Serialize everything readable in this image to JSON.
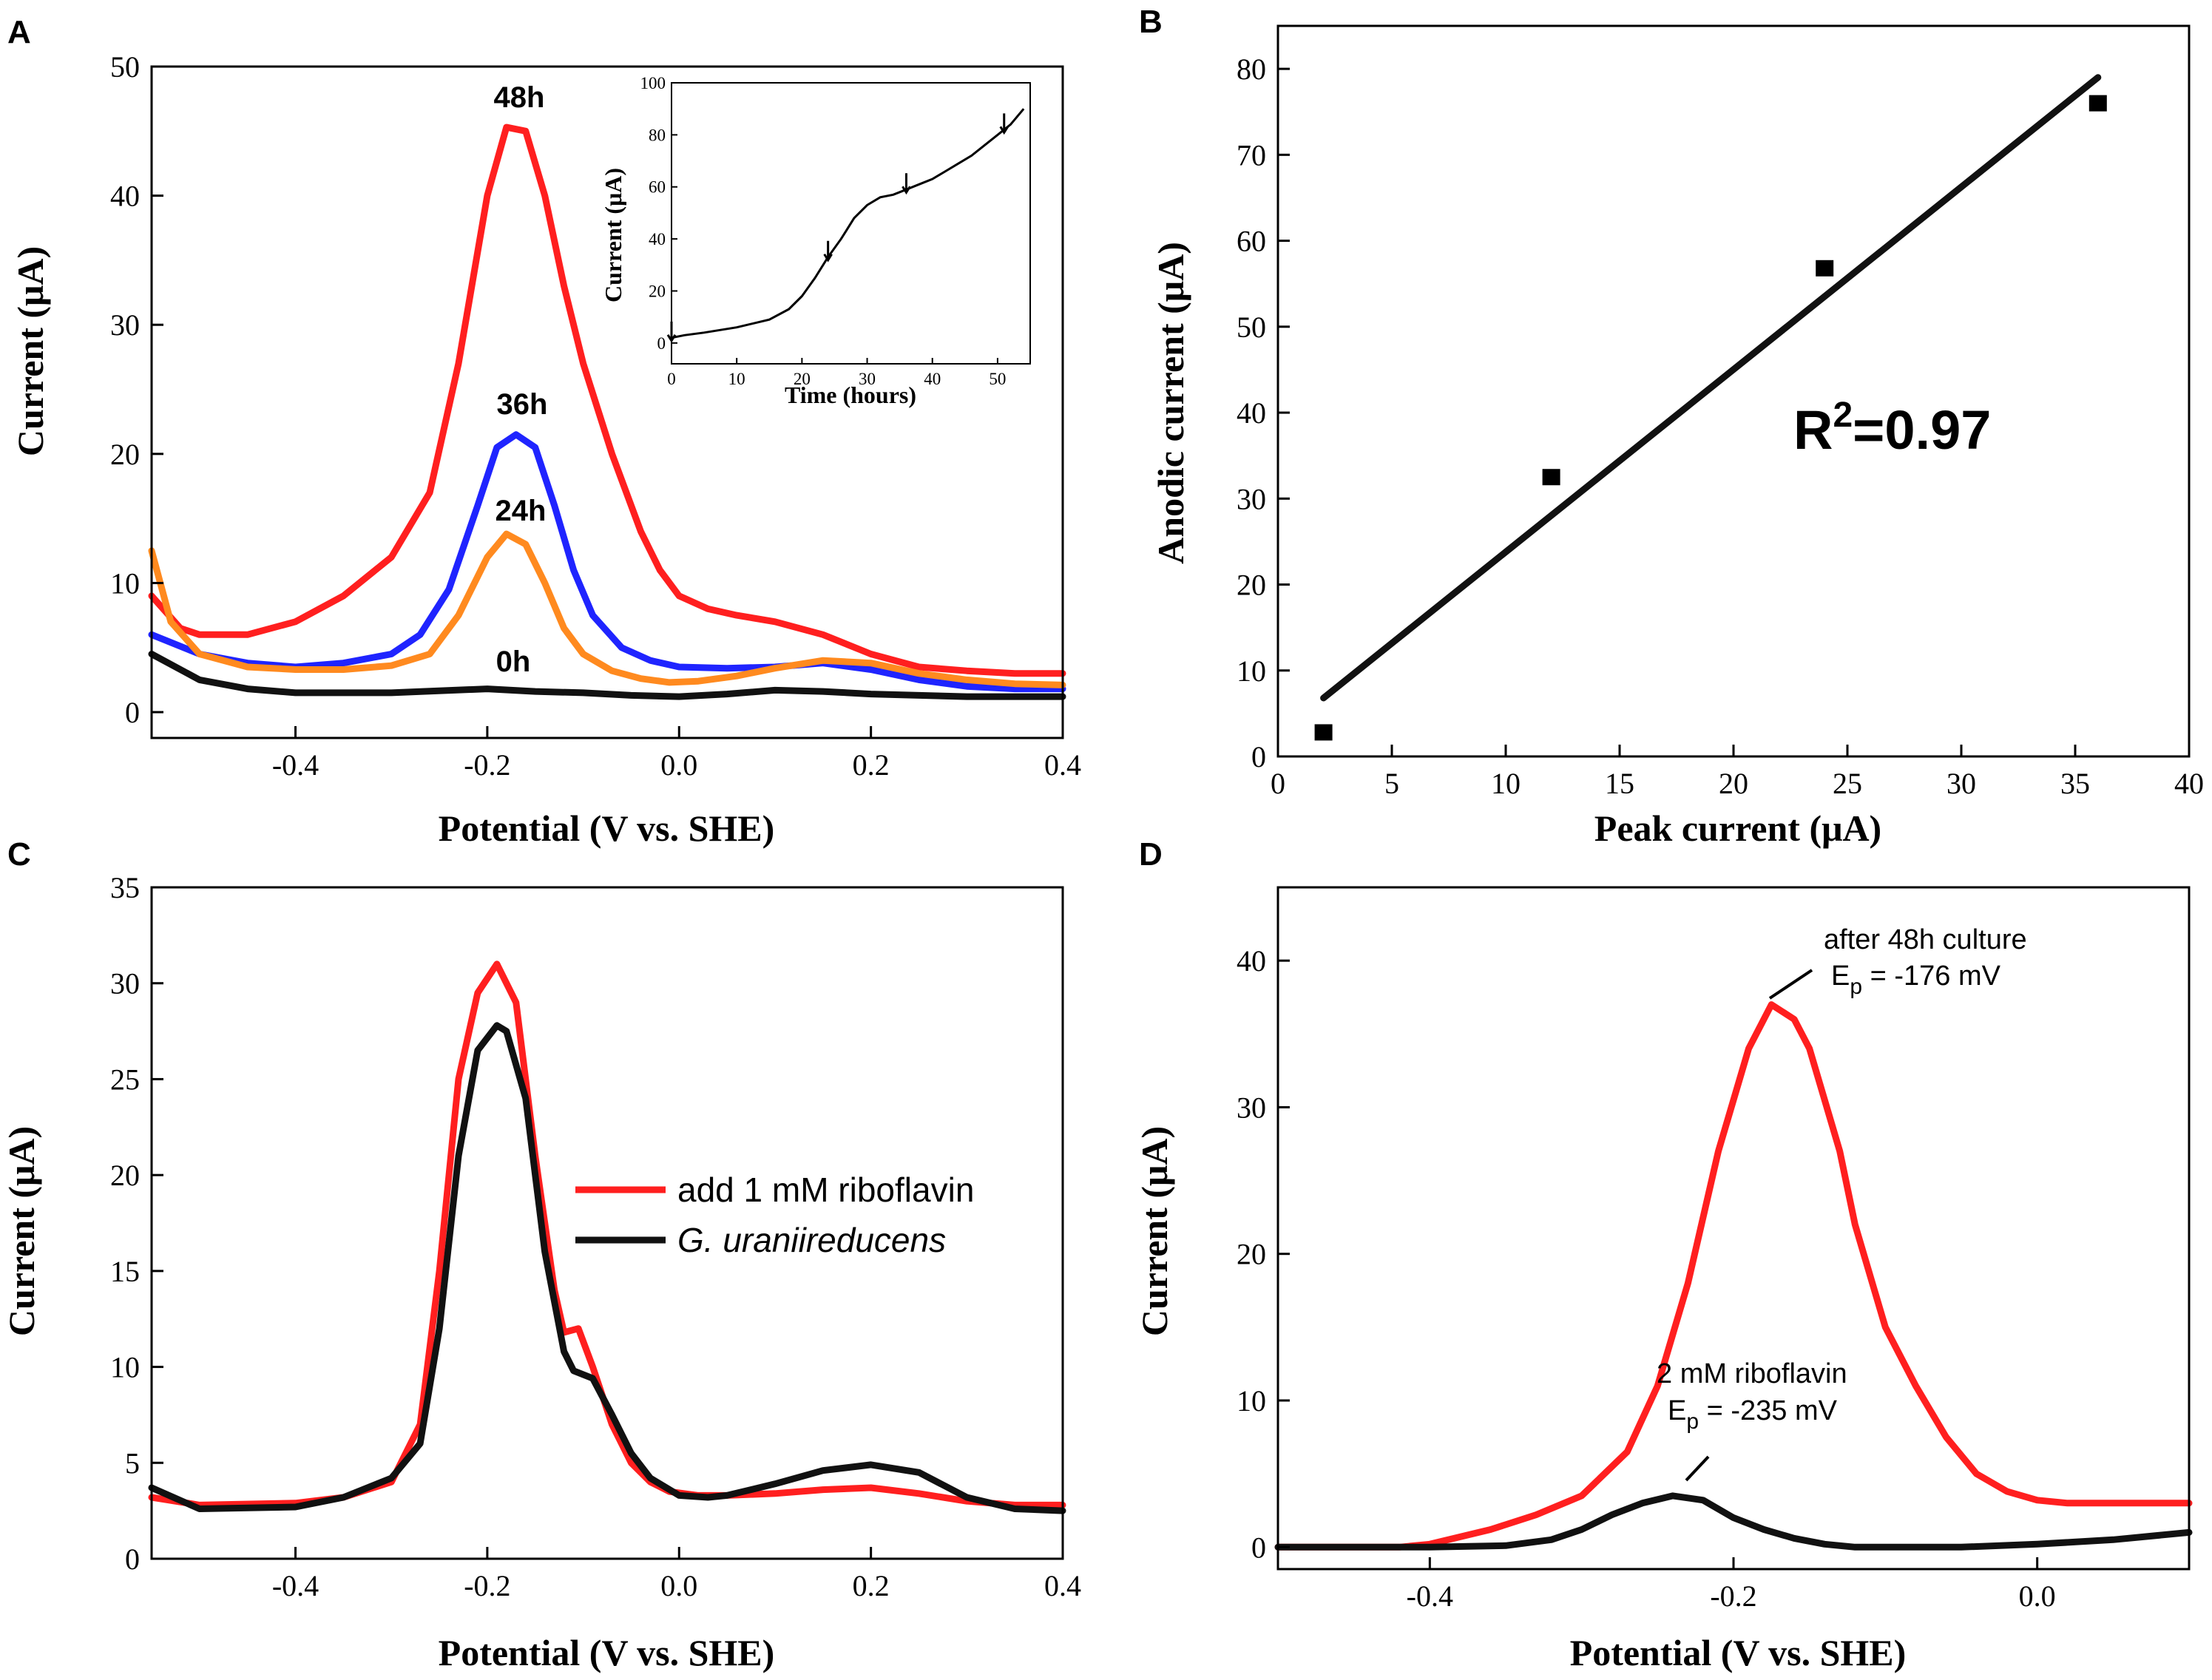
{
  "chart_data": [
    {
      "panel": "A",
      "type": "line",
      "xlabel": "Potential (V vs. SHE)",
      "ylabel": "Current (μA)",
      "xlim": [
        -0.55,
        0.4
      ],
      "ylim": [
        -2,
        50
      ],
      "xticks": [
        "-0.4",
        "-0.2",
        "0.0",
        "0.2",
        "0.4"
      ],
      "yticks": [
        "0",
        "10",
        "20",
        "30",
        "40",
        "50"
      ],
      "series": [
        {
          "name": "48h",
          "color": "#ff1f1f",
          "x": [
            -0.55,
            -0.52,
            -0.5,
            -0.45,
            -0.4,
            -0.35,
            -0.3,
            -0.26,
            -0.23,
            -0.2,
            -0.18,
            -0.16,
            -0.14,
            -0.12,
            -0.1,
            -0.07,
            -0.04,
            -0.02,
            0.0,
            0.03,
            0.06,
            0.1,
            0.15,
            0.2,
            0.25,
            0.3,
            0.35,
            0.4
          ],
          "y": [
            9,
            6.5,
            6,
            6,
            7,
            9,
            12,
            17,
            27,
            40,
            45.3,
            45,
            40,
            33,
            27,
            20,
            14,
            11,
            9,
            8,
            7.5,
            7,
            6,
            4.5,
            3.5,
            3.2,
            3,
            3
          ]
        },
        {
          "name": "36h",
          "color": "#1f24ff",
          "x": [
            -0.55,
            -0.5,
            -0.45,
            -0.4,
            -0.35,
            -0.3,
            -0.27,
            -0.24,
            -0.21,
            -0.19,
            -0.17,
            -0.15,
            -0.13,
            -0.11,
            -0.09,
            -0.06,
            -0.03,
            0.0,
            0.05,
            0.1,
            0.15,
            0.2,
            0.25,
            0.3,
            0.35,
            0.4
          ],
          "y": [
            6,
            4.5,
            3.8,
            3.5,
            3.8,
            4.5,
            6,
            9.5,
            16,
            20.5,
            21.5,
            20.5,
            16,
            11,
            7.5,
            5,
            4,
            3.5,
            3.4,
            3.5,
            3.8,
            3.3,
            2.5,
            2,
            1.8,
            1.8
          ]
        },
        {
          "name": "24h",
          "color": "#ff8a1f",
          "x": [
            -0.55,
            -0.53,
            -0.5,
            -0.45,
            -0.4,
            -0.35,
            -0.3,
            -0.26,
            -0.23,
            -0.2,
            -0.18,
            -0.16,
            -0.14,
            -0.12,
            -0.1,
            -0.07,
            -0.04,
            -0.01,
            0.02,
            0.06,
            0.1,
            0.15,
            0.2,
            0.25,
            0.3,
            0.35,
            0.4
          ],
          "y": [
            12.5,
            7,
            4.5,
            3.5,
            3.3,
            3.3,
            3.6,
            4.5,
            7.5,
            12,
            13.8,
            13,
            10,
            6.5,
            4.5,
            3.2,
            2.6,
            2.3,
            2.4,
            2.8,
            3.4,
            4,
            3.8,
            3,
            2.5,
            2.2,
            2.1
          ]
        },
        {
          "name": "0h",
          "color": "#111111",
          "x": [
            -0.55,
            -0.5,
            -0.45,
            -0.4,
            -0.3,
            -0.2,
            -0.15,
            -0.1,
            -0.05,
            0.0,
            0.05,
            0.1,
            0.15,
            0.2,
            0.3,
            0.4
          ],
          "y": [
            4.5,
            2.5,
            1.8,
            1.5,
            1.5,
            1.8,
            1.6,
            1.5,
            1.3,
            1.2,
            1.4,
            1.7,
            1.6,
            1.4,
            1.2,
            1.2
          ]
        }
      ],
      "labels": [
        {
          "text": "48h",
          "x": -0.17,
          "y": 47.2
        },
        {
          "text": "36h",
          "x": -0.165,
          "y": 23.4
        },
        {
          "text": "24h",
          "x": -0.165,
          "y": 15.3
        },
        {
          "text": "0h",
          "x": -0.175,
          "y": 3.2
        }
      ],
      "inset": {
        "type": "line",
        "xlabel": "Time (hours)",
        "ylabel": "Current (μA)",
        "xlim": [
          0,
          55
        ],
        "ylim": [
          -8,
          100
        ],
        "xticks": [
          "0",
          "10",
          "20",
          "30",
          "40",
          "50"
        ],
        "yticks": [
          "0",
          "20",
          "40",
          "60",
          "80",
          "100"
        ],
        "x": [
          0,
          2,
          5,
          10,
          15,
          18,
          20,
          22,
          24,
          26,
          28,
          30,
          32,
          34,
          36,
          38,
          40,
          42,
          44,
          46,
          48,
          50,
          52,
          53,
          54
        ],
        "y": [
          2,
          3,
          4,
          6,
          9,
          13,
          18,
          25,
          33,
          40,
          48,
          53,
          56,
          57,
          59,
          61,
          63,
          66,
          69,
          72,
          76,
          80,
          84,
          87,
          90
        ],
        "markers": [
          0,
          24,
          36,
          51
        ]
      }
    },
    {
      "panel": "B",
      "type": "scatter",
      "xlabel": "Peak current (μA)",
      "ylabel": "Anodic current (μA)",
      "xlim": [
        0,
        40
      ],
      "ylim": [
        0,
        85
      ],
      "xticks": [
        "0",
        "5",
        "10",
        "15",
        "20",
        "25",
        "30",
        "35",
        "40"
      ],
      "yticks": [
        "0",
        "10",
        "20",
        "30",
        "40",
        "50",
        "60",
        "70",
        "80"
      ],
      "points": {
        "x": [
          2,
          12,
          24,
          36
        ],
        "y": [
          2.8,
          32.5,
          56.8,
          76
        ]
      },
      "fit": {
        "x": [
          2,
          36
        ],
        "y": [
          6.8,
          79
        ]
      },
      "annotation": {
        "prefix": "R",
        "sup": "2",
        "suffix": "=0.97"
      }
    },
    {
      "panel": "C",
      "type": "line",
      "xlabel": "Potential (V vs. SHE)",
      "ylabel": "Current (μA)",
      "xlim": [
        -0.55,
        0.4
      ],
      "ylim": [
        0,
        35
      ],
      "xticks": [
        "-0.4",
        "-0.2",
        "0.0",
        "0.2",
        "0.4"
      ],
      "yticks": [
        "0",
        "5",
        "10",
        "15",
        "20",
        "25",
        "30",
        "35"
      ],
      "series": [
        {
          "name": "add 1 mM riboflavin",
          "color": "#ff1f1f",
          "x": [
            -0.55,
            -0.5,
            -0.4,
            -0.35,
            -0.3,
            -0.27,
            -0.25,
            -0.23,
            -0.21,
            -0.19,
            -0.17,
            -0.15,
            -0.13,
            -0.12,
            -0.105,
            -0.09,
            -0.07,
            -0.05,
            -0.03,
            -0.01,
            0.02,
            0.05,
            0.1,
            0.15,
            0.2,
            0.25,
            0.3,
            0.35,
            0.4
          ],
          "y": [
            3.2,
            2.8,
            2.9,
            3.2,
            4,
            7,
            15,
            25,
            29.5,
            31,
            29,
            21,
            14,
            11.8,
            12,
            10,
            7,
            5,
            4,
            3.5,
            3.3,
            3.3,
            3.4,
            3.6,
            3.7,
            3.4,
            3,
            2.8,
            2.8
          ]
        },
        {
          "name": "G. uraniireducens",
          "color": "#111111",
          "x": [
            -0.55,
            -0.5,
            -0.4,
            -0.35,
            -0.3,
            -0.27,
            -0.25,
            -0.23,
            -0.21,
            -0.19,
            -0.18,
            -0.16,
            -0.14,
            -0.12,
            -0.11,
            -0.09,
            -0.07,
            -0.05,
            -0.03,
            0.0,
            0.03,
            0.05,
            0.1,
            0.15,
            0.2,
            0.25,
            0.3,
            0.35,
            0.4
          ],
          "y": [
            3.7,
            2.6,
            2.7,
            3.2,
            4.2,
            6,
            12,
            21,
            26.5,
            27.8,
            27.5,
            24,
            16,
            10.8,
            9.8,
            9.4,
            7.5,
            5.5,
            4.2,
            3.3,
            3.2,
            3.3,
            3.9,
            4.6,
            4.9,
            4.5,
            3.2,
            2.6,
            2.5
          ]
        }
      ],
      "legend": [
        "add 1 mM riboflavin",
        "G. uraniireducens"
      ]
    },
    {
      "panel": "D",
      "type": "line",
      "xlabel": "Potential (V vs. SHE)",
      "ylabel": "Current (μA)",
      "xlim": [
        -0.5,
        0.1
      ],
      "ylim": [
        -1.5,
        45
      ],
      "xticks": [
        "-0.4",
        "-0.2",
        "0.0"
      ],
      "yticks": [
        "0",
        "10",
        "20",
        "30",
        "40"
      ],
      "series": [
        {
          "name": "after 48h culture",
          "color": "#ff1f1f",
          "x": [
            -0.5,
            -0.45,
            -0.42,
            -0.4,
            -0.36,
            -0.33,
            -0.3,
            -0.27,
            -0.25,
            -0.23,
            -0.21,
            -0.19,
            -0.175,
            -0.16,
            -0.15,
            -0.13,
            -0.12,
            -0.1,
            -0.08,
            -0.06,
            -0.04,
            -0.02,
            0.0,
            0.02,
            0.05,
            0.1
          ],
          "y": [
            0,
            0,
            0,
            0.2,
            1.2,
            2.2,
            3.5,
            6.5,
            11,
            18,
            27,
            34,
            37,
            36,
            34,
            27,
            22,
            15,
            11,
            7.5,
            5,
            3.8,
            3.2,
            3,
            3,
            3
          ]
        },
        {
          "name": "2 mM riboflavin",
          "color": "#111111",
          "x": [
            -0.5,
            -0.45,
            -0.4,
            -0.35,
            -0.32,
            -0.3,
            -0.28,
            -0.26,
            -0.24,
            -0.22,
            -0.2,
            -0.18,
            -0.16,
            -0.14,
            -0.12,
            -0.1,
            -0.05,
            0.0,
            0.05,
            0.1
          ],
          "y": [
            0,
            0,
            0,
            0.1,
            0.5,
            1.2,
            2.2,
            3,
            3.5,
            3.2,
            2,
            1.2,
            0.6,
            0.2,
            0,
            0,
            0,
            0.2,
            0.5,
            1
          ]
        }
      ],
      "annotations": [
        {
          "line1": "after 48h culture",
          "line2_prefix": "E",
          "line2_sub": "p",
          "line2_suffix": " = -176 mV"
        },
        {
          "line1": "2 mM riboflavin",
          "line2_prefix": "E",
          "line2_sub": "p",
          "line2_suffix": " = -235 mV"
        }
      ]
    }
  ],
  "panel_letters": [
    "A",
    "B",
    "C",
    "D"
  ]
}
